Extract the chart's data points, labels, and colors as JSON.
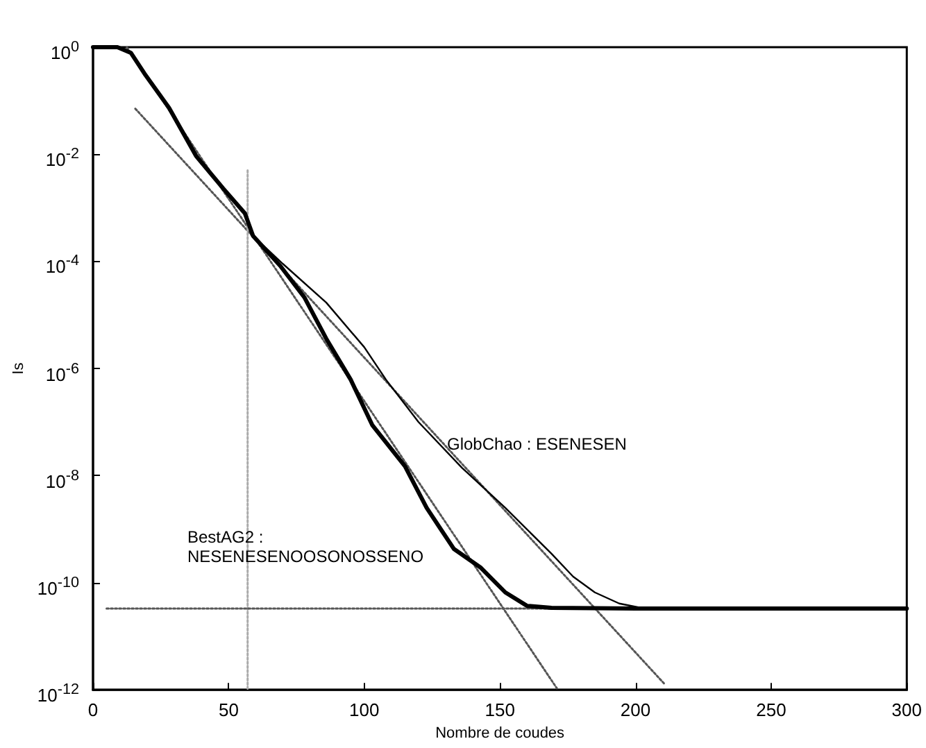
{
  "chart_data": {
    "type": "line",
    "xlabel": "Nombre de coudes",
    "ylabel": "Is",
    "xlim": [
      0,
      300
    ],
    "xticks": [
      0,
      50,
      100,
      150,
      200,
      250,
      300
    ],
    "ylim": [
      1e-12,
      1
    ],
    "log": "y",
    "yticks": [
      {
        "value": 1e-12,
        "label": "10$^{-12}$"
      },
      {
        "value": 1e-10,
        "label": "10$^{-10}$"
      },
      {
        "value": 1e-08,
        "label": "10$^{-8}$"
      },
      {
        "value": 1e-06,
        "label": "10$^{-6}$"
      },
      {
        "value": 0.0001,
        "label": "10$^{-4}$"
      },
      {
        "value": 0.01,
        "label": "10$^{-2}$"
      },
      {
        "value": 1,
        "label": "10$^{0}$"
      }
    ],
    "grid": false,
    "marker": "none",
    "series": [
      {
        "color": "#000000",
        "line_style": "solid",
        "x": [
          0,
          9,
          14,
          19,
          28,
          38,
          48,
          56,
          59,
          69,
          78,
          86,
          95,
          103,
          115,
          123,
          133,
          143,
          152,
          160,
          169,
          200,
          250,
          300
        ],
        "values": [
          1,
          1,
          0.78,
          0.32,
          0.074,
          0.0093,
          0.0023,
          0.00079,
          0.0003,
          8.3e-05,
          2.1e-05,
          3.6e-06,
          6.2e-07,
          8.7e-08,
          1.5e-08,
          2.5e-09,
          4.3e-10,
          1.9e-10,
          6.6e-11,
          3.7e-11,
          3.4e-11,
          3.3e-11,
          3.3e-11,
          3.3e-11
        ]
      },
      {
        "color": "#000000",
        "line_style": "solid",
        "x": [
          0,
          9,
          14,
          19,
          28,
          38,
          48,
          56,
          59,
          70,
          86,
          100,
          108,
          120,
          136,
          152,
          169,
          177,
          185,
          194,
          202,
          250,
          300
        ],
        "values": [
          1,
          1,
          0.78,
          0.32,
          0.074,
          0.0093,
          0.0023,
          0.00079,
          0.0003,
          9e-05,
          1.7e-05,
          2.5e-06,
          6.2e-07,
          1e-07,
          1.4e-08,
          2.5e-09,
          3.5e-10,
          1.3e-10,
          6.6e-11,
          4.1e-11,
          3.4e-11,
          3.3e-11,
          3.3e-11
        ]
      },
      {
        "color": "#555555",
        "line_style": "dotted",
        "x": [
          12.5,
          171
        ],
        "values": [
          1,
          1.07e-12
        ]
      },
      {
        "color": "#555555",
        "line_style": "dotted",
        "x": [
          15.6,
          210.6
        ],
        "values": [
          0.071,
          1.3e-12
        ]
      },
      {
        "color": "#aaaaaa",
        "line_style": "dotted",
        "x": [
          57,
          57
        ],
        "values": [
          0.005,
          1e-12
        ]
      },
      {
        "color": "#555555",
        "line_style": "dotted",
        "x": [
          5,
          300
        ],
        "values": [
          3.3e-11,
          3.3e-11
        ]
      }
    ],
    "annotations": [
      "GlobChao : ESENESEN",
      "BestAG2 :\nNESENESENOOSONOSSENO"
    ]
  }
}
